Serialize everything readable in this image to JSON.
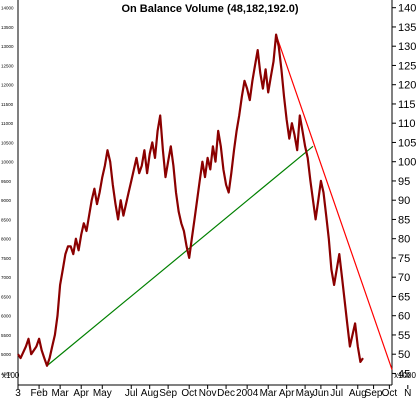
{
  "chart_data": {
    "type": "line",
    "title": "On Balance Volume (48,182,192.0)",
    "x_tick_labels": [
      "3",
      "Feb",
      "Mar",
      "Apr",
      "May",
      "Jul",
      "Aug",
      "Sep",
      "Oct",
      "Nov",
      "Dec",
      "2004",
      "Mar",
      "Apr",
      "May",
      "Jun",
      "Jul",
      "Aug",
      "Sep",
      "Oct",
      "N"
    ],
    "left_axis_ticks": [
      "14000",
      "13500",
      "13000",
      "12500",
      "12000",
      "11500",
      "11000",
      "10500",
      "10000",
      "9500",
      "9000",
      "8500",
      "8000",
      "7500",
      "7000",
      "6500",
      "6000",
      "5500",
      "5000",
      "4500"
    ],
    "left_axis_scale_label": "x100",
    "right_axis_ticks": [
      140,
      135,
      130,
      125,
      120,
      115,
      110,
      105,
      100,
      95,
      90,
      85,
      80,
      75,
      70,
      65,
      60,
      55,
      50,
      45
    ],
    "right_axis_scale_label": "x1000",
    "y_range": [
      42,
      142
    ],
    "series": [
      {
        "color": "#8b0000",
        "values": [
          [
            0,
            50
          ],
          [
            1,
            49
          ],
          [
            3,
            52
          ],
          [
            4,
            54
          ],
          [
            5,
            50
          ],
          [
            7,
            52
          ],
          [
            8,
            54
          ],
          [
            9,
            51
          ],
          [
            10,
            49
          ],
          [
            11,
            47
          ],
          [
            12,
            49
          ],
          [
            13,
            52
          ],
          [
            14,
            55
          ],
          [
            15,
            60
          ],
          [
            16,
            68
          ],
          [
            17,
            72
          ],
          [
            18,
            76
          ],
          [
            19,
            78
          ],
          [
            20,
            78
          ],
          [
            21,
            76
          ],
          [
            22,
            80
          ],
          [
            23,
            77
          ],
          [
            24,
            81
          ],
          [
            25,
            84
          ],
          [
            26,
            82
          ],
          [
            27,
            86
          ],
          [
            28,
            90
          ],
          [
            29,
            93
          ],
          [
            30,
            89
          ],
          [
            31,
            92
          ],
          [
            32,
            96
          ],
          [
            33,
            99
          ],
          [
            34,
            103
          ],
          [
            35,
            100
          ],
          [
            36,
            94
          ],
          [
            37,
            89
          ],
          [
            38,
            85
          ],
          [
            39,
            90
          ],
          [
            40,
            86
          ],
          [
            41,
            89
          ],
          [
            42,
            92
          ],
          [
            43,
            95
          ],
          [
            44,
            98
          ],
          [
            45,
            101
          ],
          [
            46,
            97
          ],
          [
            47,
            99
          ],
          [
            48,
            103
          ],
          [
            49,
            97
          ],
          [
            50,
            102
          ],
          [
            51,
            105
          ],
          [
            52,
            101
          ],
          [
            53,
            108
          ],
          [
            54,
            112
          ],
          [
            55,
            103
          ],
          [
            56,
            96
          ],
          [
            57,
            100
          ],
          [
            58,
            104
          ],
          [
            59,
            99
          ],
          [
            60,
            92
          ],
          [
            61,
            87
          ],
          [
            62,
            84
          ],
          [
            63,
            82
          ],
          [
            64,
            78
          ],
          [
            65,
            75
          ],
          [
            66,
            80
          ],
          [
            67,
            85
          ],
          [
            68,
            90
          ],
          [
            69,
            95
          ],
          [
            70,
            100
          ],
          [
            71,
            96
          ],
          [
            72,
            101
          ],
          [
            73,
            98
          ],
          [
            74,
            104
          ],
          [
            75,
            100
          ],
          [
            76,
            108
          ],
          [
            77,
            104
          ],
          [
            78,
            98
          ],
          [
            79,
            94
          ],
          [
            80,
            92
          ],
          [
            81,
            97
          ],
          [
            82,
            103
          ],
          [
            83,
            108
          ],
          [
            84,
            112
          ],
          [
            85,
            117
          ],
          [
            86,
            121
          ],
          [
            87,
            119
          ],
          [
            88,
            116
          ],
          [
            89,
            121
          ],
          [
            90,
            125
          ],
          [
            91,
            129
          ],
          [
            92,
            123
          ],
          [
            93,
            119
          ],
          [
            94,
            124
          ],
          [
            95,
            118
          ],
          [
            96,
            122
          ],
          [
            97,
            126
          ],
          [
            98,
            133
          ],
          [
            99,
            130
          ],
          [
            100,
            124
          ],
          [
            101,
            117
          ],
          [
            102,
            111
          ],
          [
            103,
            106
          ],
          [
            104,
            110
          ],
          [
            105,
            107
          ],
          [
            106,
            103
          ],
          [
            107,
            112
          ],
          [
            108,
            108
          ],
          [
            109,
            104
          ],
          [
            110,
            101
          ],
          [
            111,
            95
          ],
          [
            112,
            90
          ],
          [
            113,
            85
          ],
          [
            114,
            90
          ],
          [
            115,
            95
          ],
          [
            116,
            92
          ],
          [
            117,
            86
          ],
          [
            118,
            80
          ],
          [
            119,
            72
          ],
          [
            120,
            68
          ],
          [
            121,
            72
          ],
          [
            122,
            76
          ],
          [
            123,
            70
          ],
          [
            124,
            64
          ],
          [
            125,
            58
          ],
          [
            126,
            52
          ],
          [
            127,
            55
          ],
          [
            128,
            58
          ],
          [
            129,
            52
          ],
          [
            130,
            48
          ],
          [
            131,
            49
          ]
        ]
      }
    ],
    "trendlines": [
      {
        "color": "#008000",
        "from": [
          11,
          47
        ],
        "to": [
          112,
          104
        ]
      },
      {
        "color": "#ff0000",
        "from": [
          98,
          133
        ],
        "to": [
          142,
          46
        ]
      }
    ],
    "grid": false,
    "legend": "none"
  }
}
